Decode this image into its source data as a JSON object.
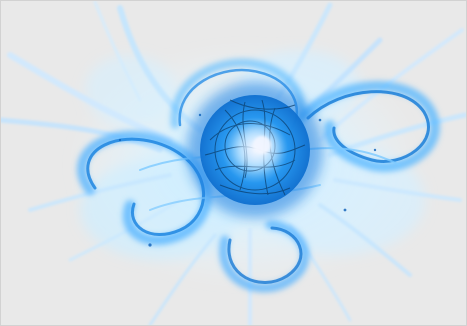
{
  "image": {
    "subject": "energy-orb",
    "colors": {
      "background": "#e9e9e9",
      "glow_light": "#d8f1ff",
      "glow_mid": "#6cc8ff",
      "glow_core": "#1e8fe8",
      "deep": "#0c5fb8",
      "veins": "#0b3f6e",
      "highlight": "#f3f6ff"
    }
  }
}
